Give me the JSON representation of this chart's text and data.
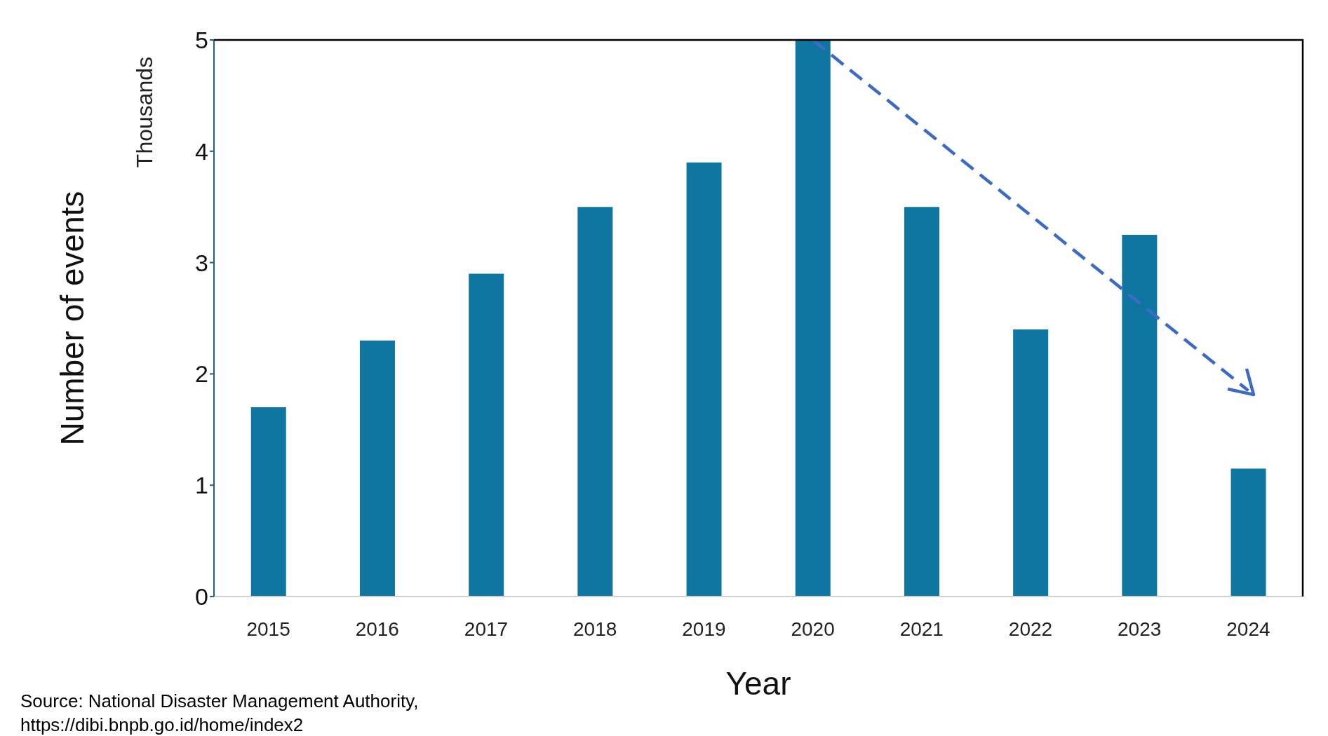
{
  "chart_data": {
    "type": "bar",
    "xlabel": "Year",
    "ylabel": "Number of events",
    "categories": [
      "2015",
      "2016",
      "2017",
      "2018",
      "2019",
      "2020",
      "2021",
      "2022",
      "2023",
      "2024"
    ],
    "series": [
      {
        "color": "#0e76a0",
        "values": [
          1.7,
          2.3,
          2.9,
          3.5,
          3.9,
          5.0,
          3.5,
          2.4,
          3.25,
          1.15
        ]
      },
      {
        "type": "line",
        "color": "#3c6bc6",
        "line_style": "dashed",
        "marker": "none",
        "values": [
          null,
          null,
          null,
          null,
          null,
          5.0,
          null,
          null,
          null,
          1.85
        ]
      }
    ],
    "ylim": [
      0,
      5
    ],
    "yticks": [
      0,
      1,
      2,
      3,
      4,
      5
    ],
    "annotations": [
      "Thousands",
      "Source: National Disaster Management Authority,\nhttps://dibi.bnpb.go.id/home/index2"
    ]
  }
}
